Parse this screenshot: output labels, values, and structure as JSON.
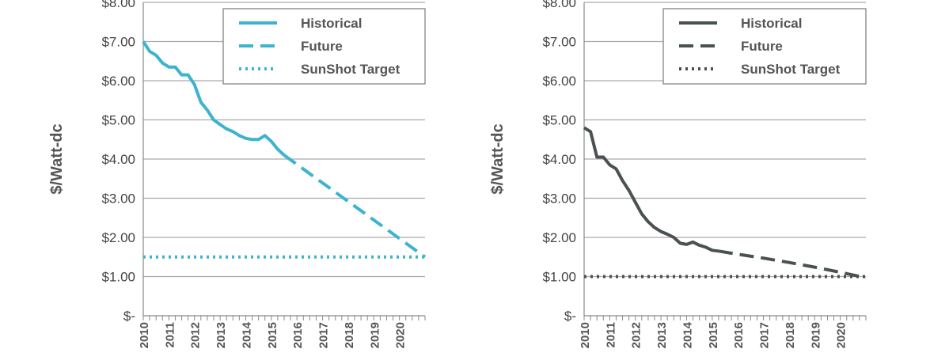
{
  "chart_data": [
    {
      "type": "line",
      "ylabel": "$/Watt-dc",
      "xlabel": "",
      "ylim": [
        0,
        8
      ],
      "xlim": [
        2010,
        2021
      ],
      "y_ticks": [
        "$-",
        "$1.00",
        "$2.00",
        "$3.00",
        "$4.00",
        "$5.00",
        "$6.00",
        "$7.00",
        "$8.00"
      ],
      "x_ticks": [
        "2010",
        "2011",
        "2012",
        "2013",
        "2014",
        "2015",
        "2016",
        "2017",
        "2018",
        "2019",
        "2020"
      ],
      "grid": true,
      "legend_position": "top-right",
      "color": "#3CB4CF",
      "series": [
        {
          "name": "Historical",
          "style": "solid",
          "x": [
            2010.0,
            2010.25,
            2010.5,
            2010.75,
            2011.0,
            2011.25,
            2011.5,
            2011.75,
            2012.0,
            2012.25,
            2012.5,
            2012.75,
            2013.0,
            2013.25,
            2013.5,
            2013.75,
            2014.0,
            2014.25,
            2014.5,
            2014.75,
            2015.0,
            2015.25,
            2015.5
          ],
          "values": [
            7.0,
            6.75,
            6.65,
            6.45,
            6.35,
            6.35,
            6.15,
            6.15,
            5.9,
            5.45,
            5.25,
            5.0,
            4.88,
            4.77,
            4.7,
            4.6,
            4.53,
            4.5,
            4.5,
            4.6,
            4.45,
            4.25,
            4.1
          ]
        },
        {
          "name": "Future",
          "style": "dashed",
          "x": [
            2015.5,
            2021.0
          ],
          "values": [
            4.1,
            1.5
          ]
        },
        {
          "name": "SunShot Target",
          "style": "dotted",
          "x": [
            2010.0,
            2021.0
          ],
          "values": [
            1.5,
            1.5
          ]
        }
      ]
    },
    {
      "type": "line",
      "ylabel": "$/Watt-dc",
      "xlabel": "",
      "ylim": [
        0,
        8
      ],
      "xlim": [
        2010,
        2021
      ],
      "y_ticks": [
        "$-",
        "$1.00",
        "$2.00",
        "$3.00",
        "$4.00",
        "$5.00",
        "$6.00",
        "$7.00",
        "$8.00"
      ],
      "x_ticks": [
        "2010",
        "2011",
        "2012",
        "2013",
        "2014",
        "2015",
        "2016",
        "2017",
        "2018",
        "2019",
        "2020"
      ],
      "grid": true,
      "legend_position": "top-right",
      "color": "#4A5152",
      "series": [
        {
          "name": "Historical",
          "style": "solid",
          "x": [
            2010.0,
            2010.25,
            2010.5,
            2010.75,
            2011.0,
            2011.25,
            2011.5,
            2011.75,
            2012.0,
            2012.25,
            2012.5,
            2012.75,
            2013.0,
            2013.25,
            2013.5,
            2013.75,
            2014.0,
            2014.25,
            2014.5,
            2014.75,
            2015.0,
            2015.25
          ],
          "values": [
            4.8,
            4.7,
            4.05,
            4.05,
            3.85,
            3.75,
            3.45,
            3.2,
            2.9,
            2.6,
            2.4,
            2.25,
            2.15,
            2.08,
            2.0,
            1.85,
            1.82,
            1.88,
            1.8,
            1.75,
            1.67,
            1.65
          ]
        },
        {
          "name": "Future",
          "style": "dashed",
          "x": [
            2015.25,
            2016.0,
            2017.0,
            2018.0,
            2019.0,
            2020.0,
            2021.0
          ],
          "values": [
            1.65,
            1.57,
            1.47,
            1.36,
            1.24,
            1.11,
            0.97
          ]
        },
        {
          "name": "SunShot Target",
          "style": "dotted",
          "x": [
            2010.0,
            2021.0
          ],
          "values": [
            1.0,
            1.0
          ]
        }
      ]
    }
  ]
}
